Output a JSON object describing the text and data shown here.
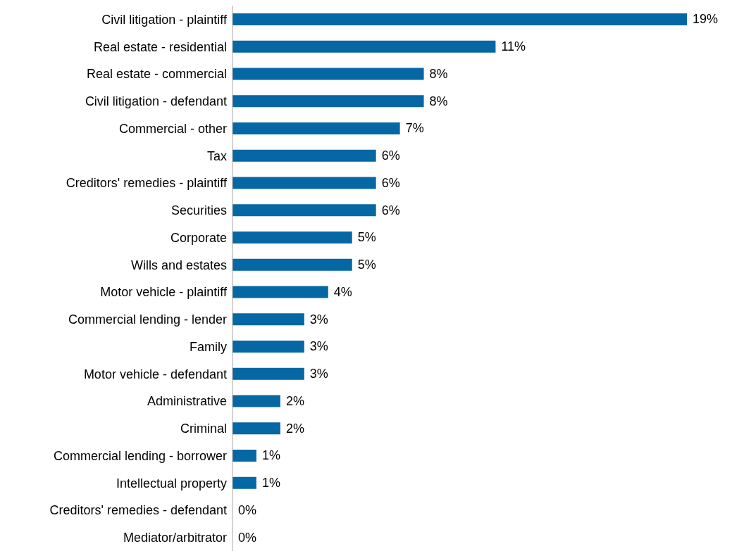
{
  "chart_data": {
    "type": "bar",
    "orientation": "horizontal",
    "categories": [
      "Civil litigation - plaintiff",
      "Real estate - residential",
      "Real estate - commercial",
      "Civil litigation - defendant",
      "Commercial - other",
      "Tax",
      "Creditors' remedies - plaintiff",
      "Securities",
      "Corporate",
      "Wills and estates",
      "Motor vehicle - plaintiff",
      "Commercial lending - lender",
      "Family",
      "Motor vehicle - defendant",
      "Administrative",
      "Criminal",
      "Commercial lending - borrower",
      "Intellectual property",
      "Creditors' remedies - defendant",
      "Mediator/arbitrator"
    ],
    "values": [
      19,
      11,
      8,
      8,
      7,
      6,
      6,
      6,
      5,
      5,
      4,
      3,
      3,
      3,
      2,
      2,
      1,
      1,
      0,
      0
    ],
    "value_labels": [
      "19%",
      "11%",
      "8%",
      "8%",
      "7%",
      "6%",
      "6%",
      "6%",
      "5%",
      "5%",
      "4%",
      "3%",
      "3%",
      "3%",
      "2%",
      "2%",
      "1%",
      "1%",
      "0%",
      "0%"
    ],
    "color": "#0567a3",
    "grid": false,
    "legend": false
  }
}
